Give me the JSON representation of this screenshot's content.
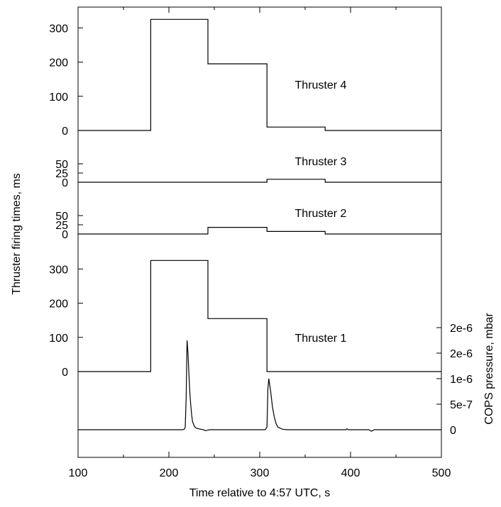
{
  "chart_data": {
    "type": "line",
    "x_axis": {
      "label": "Time relative to 4:57 UTC, s",
      "range": [
        100,
        500
      ],
      "ticks": [
        100,
        200,
        300,
        400,
        500
      ],
      "minor_ticks": [
        150,
        250,
        350,
        450
      ]
    },
    "left_axis_label": "Thruster firing times, ms",
    "right_axis_label": "COPS pressure, mbar",
    "grid": false,
    "panels": [
      {
        "name": "Thruster 4",
        "annotation": "Thruster 4",
        "y_ticks": [
          0,
          100,
          200,
          300
        ],
        "y_tick_labels": [
          "0",
          "100",
          "200",
          "300"
        ],
        "series": {
          "x": [
            100,
            180,
            180,
            243,
            243,
            308,
            308,
            372,
            372,
            500
          ],
          "y": [
            0,
            0,
            325,
            325,
            195,
            195,
            10,
            10,
            0,
            0
          ]
        }
      },
      {
        "name": "Thruster 3",
        "annotation": "Thruster 3",
        "y_ticks": [
          0,
          25,
          50
        ],
        "y_tick_labels": [
          "0",
          "25",
          "50"
        ],
        "series": {
          "x": [
            100,
            308,
            308,
            372,
            372,
            500
          ],
          "y": [
            0,
            0,
            8,
            8,
            0,
            0
          ]
        }
      },
      {
        "name": "Thruster 2",
        "annotation": "Thruster 2",
        "y_ticks": [
          0,
          25,
          50
        ],
        "y_tick_labels": [
          "0",
          "25",
          "50"
        ],
        "series": {
          "x": [
            100,
            243,
            243,
            308,
            308,
            372,
            372,
            500
          ],
          "y": [
            0,
            0,
            18,
            18,
            7,
            7,
            0,
            0
          ]
        }
      },
      {
        "name": "Thruster 1",
        "annotation": "Thruster 1",
        "y_ticks": [
          0,
          100,
          200,
          300
        ],
        "y_tick_labels": [
          "0",
          "100",
          "200",
          "300"
        ],
        "series": {
          "x": [
            100,
            180,
            180,
            243,
            243,
            308,
            308,
            500
          ],
          "y": [
            0,
            0,
            325,
            325,
            155,
            155,
            0,
            0
          ]
        }
      }
    ],
    "pressure": {
      "y_ticks": [
        0,
        5e-07,
        1e-06,
        1.5e-06,
        2e-06
      ],
      "y_tick_labels": [
        "0",
        "5e-7",
        "1e-6",
        "2e-6",
        "2e-6"
      ],
      "series": {
        "x": [
          100,
          215,
          217,
          218,
          219,
          220,
          221,
          222,
          223,
          224,
          225,
          226,
          228,
          230,
          235,
          238,
          240,
          245,
          300,
          306,
          308,
          309,
          310,
          312,
          314,
          316,
          318,
          320,
          325,
          330,
          340,
          395,
          396,
          397,
          400,
          420,
          422,
          423,
          426,
          500
        ],
        "y": [
          0,
          0,
          1e-08,
          5e-08,
          6e-07,
          1.75e-06,
          1.5e-06,
          1.1e-06,
          7.5e-07,
          5e-07,
          3e-07,
          1.6e-07,
          7e-08,
          3e-08,
          1e-08,
          0,
          -2e-08,
          0,
          0,
          0,
          5e-08,
          8e-07,
          1e-06,
          7.5e-07,
          4.5e-07,
          2.5e-07,
          1.2e-07,
          5e-08,
          1e-08,
          0,
          0,
          0,
          2e-08,
          0,
          0,
          0,
          -2e-08,
          -3e-08,
          0,
          0
        ]
      }
    }
  }
}
